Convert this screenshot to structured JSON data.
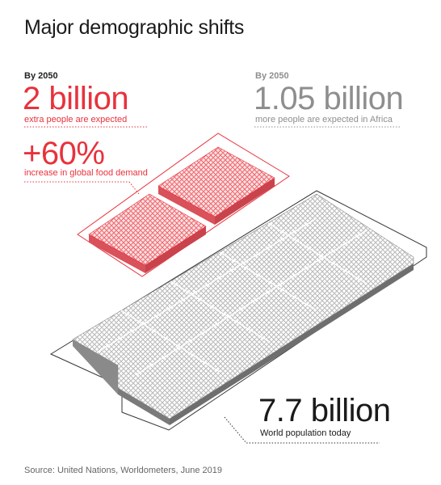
{
  "title": "Major demographic shifts",
  "left_block": {
    "kicker": "By 2050",
    "headline": "2 billion",
    "caption": "extra people are expected"
  },
  "food_block": {
    "headline": "+60%",
    "caption": "increase in global food demand"
  },
  "right_block": {
    "kicker": "By 2050",
    "headline": "1.05 billion",
    "caption": "more people are expected in Africa"
  },
  "today_block": {
    "headline": "7.7 billion",
    "caption": "World population today"
  },
  "source": "Source: United Nations, Worldometers, June 2019",
  "colors": {
    "accent_red": "#e8323c",
    "grey_text": "#8e8e8e",
    "crowd_grey": "#9a9a9a"
  }
}
